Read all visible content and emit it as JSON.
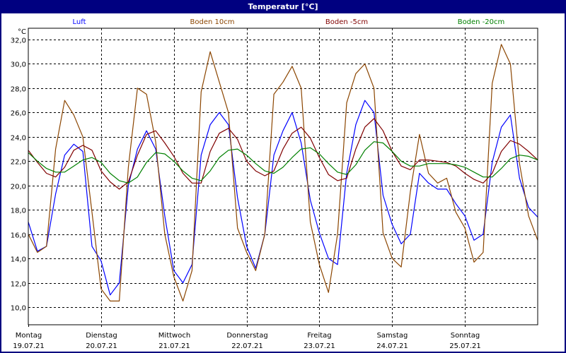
{
  "window": {
    "title": "Temperatur [°C]"
  },
  "chart_data": {
    "type": "line",
    "title": "Temperatur [°C]",
    "ylabel": "°C",
    "ylim": [
      8.55,
      32.93
    ],
    "yticks": [
      10,
      12,
      14,
      16,
      18,
      20,
      22,
      24,
      26,
      28,
      30,
      32
    ],
    "ytick_labels": [
      "10,0",
      "12,0",
      "14,0",
      "16,0",
      "18,0",
      "20,0",
      "22,0",
      "24,0",
      "26,0",
      "28,0",
      "30,0",
      "32,0"
    ],
    "grid": true,
    "legend_placement": "top",
    "x_range": [
      "19.07.21 00:00",
      "26.07.21 00:00"
    ],
    "x_ticks": [
      {
        "day": "Montag",
        "date": "19.07.21"
      },
      {
        "day": "Dienstag",
        "date": "20.07.21"
      },
      {
        "day": "Mittwoch",
        "date": "21.07.21"
      },
      {
        "day": "Donnerstag",
        "date": "22.07.21"
      },
      {
        "day": "Freitag",
        "date": "23.07.21"
      },
      {
        "day": "Samstag",
        "date": "24.07.21"
      },
      {
        "day": "Sonntag",
        "date": "25.07.21"
      }
    ],
    "x": [
      "19.07.21 00:00",
      "19.07.21 03:00",
      "19.07.21 06:00",
      "19.07.21 09:00",
      "19.07.21 12:00",
      "19.07.21 15:00",
      "19.07.21 18:00",
      "19.07.21 21:00",
      "20.07.21 00:00",
      "20.07.21 03:00",
      "20.07.21 06:00",
      "20.07.21 09:00",
      "20.07.21 12:00",
      "20.07.21 15:00",
      "20.07.21 18:00",
      "20.07.21 21:00",
      "21.07.21 00:00",
      "21.07.21 03:00",
      "21.07.21 06:00",
      "21.07.21 09:00",
      "21.07.21 12:00",
      "21.07.21 15:00",
      "21.07.21 18:00",
      "21.07.21 21:00",
      "22.07.21 00:00",
      "22.07.21 03:00",
      "22.07.21 06:00",
      "22.07.21 09:00",
      "22.07.21 12:00",
      "22.07.21 15:00",
      "22.07.21 18:00",
      "22.07.21 21:00",
      "23.07.21 00:00",
      "23.07.21 03:00",
      "23.07.21 06:00",
      "23.07.21 09:00",
      "23.07.21 12:00",
      "23.07.21 15:00",
      "23.07.21 18:00",
      "23.07.21 21:00",
      "24.07.21 00:00",
      "24.07.21 03:00",
      "24.07.21 06:00",
      "24.07.21 09:00",
      "24.07.21 12:00",
      "24.07.21 15:00",
      "24.07.21 18:00",
      "24.07.21 21:00",
      "25.07.21 00:00",
      "25.07.21 03:00",
      "25.07.21 06:00",
      "25.07.21 09:00",
      "25.07.21 12:00",
      "25.07.21 15:00",
      "25.07.21 18:00",
      "25.07.21 21:00",
      "26.07.21 00:00"
    ],
    "series": [
      {
        "name": "Luft",
        "color": "#0000ff",
        "values": [
          17.0,
          14.6,
          15.0,
          19.3,
          22.5,
          23.4,
          22.8,
          15.0,
          13.8,
          11.0,
          12.0,
          20.0,
          23.0,
          24.5,
          23.0,
          17.5,
          13.0,
          12.0,
          13.5,
          22.5,
          25.0,
          26.0,
          25.0,
          19.0,
          15.0,
          13.2,
          16.0,
          22.5,
          24.5,
          26.0,
          23.5,
          18.8,
          16.1,
          14.0,
          13.5,
          21.0,
          25.0,
          27.0,
          26.0,
          19.2,
          16.8,
          15.2,
          16.0,
          21.0,
          20.2,
          19.7,
          19.7,
          18.5,
          17.5,
          15.5,
          16.0,
          21.9,
          24.8,
          25.8,
          20.6,
          18.2,
          17.4
        ]
      },
      {
        "name": "Boden 10cm",
        "color": "#8b4500",
        "values": [
          16.0,
          14.5,
          15.0,
          23.0,
          27.0,
          25.8,
          24.0,
          17.8,
          11.5,
          10.5,
          10.5,
          21.5,
          28.0,
          27.5,
          23.6,
          16.0,
          12.5,
          10.5,
          13.0,
          27.7,
          31.0,
          28.5,
          26.0,
          16.5,
          14.5,
          13.0,
          16.0,
          27.5,
          28.5,
          29.8,
          28.0,
          17.0,
          13.5,
          11.2,
          16.0,
          26.8,
          29.2,
          30.0,
          28.0,
          16.1,
          14.0,
          13.3,
          19.5,
          24.2,
          21.0,
          20.2,
          20.6,
          17.8,
          16.5,
          13.7,
          14.5,
          28.4,
          31.6,
          30.0,
          21.8,
          17.5,
          15.5
        ]
      },
      {
        "name": "Boden -5cm",
        "color": "#800000",
        "values": [
          22.9,
          21.9,
          21.0,
          20.7,
          21.5,
          22.9,
          23.3,
          22.9,
          21.2,
          20.3,
          19.7,
          20.3,
          22.5,
          24.2,
          24.5,
          23.5,
          22.4,
          21.0,
          20.2,
          20.2,
          22.8,
          24.3,
          24.7,
          23.8,
          22.0,
          21.2,
          20.8,
          21.2,
          23.0,
          24.3,
          24.8,
          23.9,
          22.3,
          20.9,
          20.4,
          20.6,
          23.0,
          24.8,
          25.5,
          24.5,
          22.8,
          21.6,
          21.3,
          22.1,
          22.1,
          22.0,
          21.9,
          21.6,
          21.0,
          20.5,
          20.2,
          21.0,
          22.8,
          23.7,
          23.4,
          22.8,
          22.1
        ]
      },
      {
        "name": "Boden -20cm",
        "color": "#008000",
        "values": [
          22.7,
          22.0,
          21.4,
          21.1,
          21.1,
          21.6,
          22.1,
          22.3,
          21.9,
          21.0,
          20.4,
          20.2,
          20.7,
          21.9,
          22.7,
          22.6,
          22.0,
          21.2,
          20.6,
          20.4,
          21.2,
          22.3,
          22.9,
          23.0,
          22.5,
          21.8,
          21.2,
          21.0,
          21.5,
          22.3,
          23.0,
          23.1,
          22.6,
          21.8,
          21.1,
          20.9,
          21.7,
          22.9,
          23.6,
          23.5,
          22.8,
          22.0,
          21.6,
          21.6,
          21.8,
          21.8,
          21.8,
          21.7,
          21.5,
          21.1,
          20.7,
          20.7,
          21.4,
          22.2,
          22.5,
          22.4,
          22.1
        ]
      }
    ]
  }
}
